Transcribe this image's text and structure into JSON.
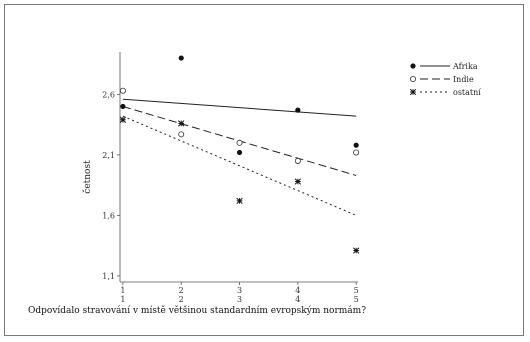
{
  "chart_data": {
    "type": "scatter",
    "title": "",
    "xlabel": "Odpovídalo stravování v místě většinou standardním evropským normám?",
    "ylabel": "četnost",
    "x": [
      1,
      2,
      3,
      4,
      5
    ],
    "x_tick_labels": [
      "1\n1",
      "2\n2",
      "3\n3",
      "4\n4",
      "5\n5"
    ],
    "y_ticks": [
      1.1,
      1.6,
      2.1,
      2.6
    ],
    "y_tick_labels": [
      "1,1",
      "1,6",
      "2,1",
      "2,6"
    ],
    "xlim": [
      0.95,
      5.1
    ],
    "ylim": [
      1.05,
      2.95
    ],
    "grid": false,
    "legend_position": "top-right",
    "series": [
      {
        "name": "Afrika",
        "marker": "filled-circle",
        "line_style": "solid",
        "points": [
          [
            1,
            2.5
          ],
          [
            2,
            2.9
          ],
          [
            3,
            2.12
          ],
          [
            4,
            2.47
          ],
          [
            5,
            2.18
          ]
        ],
        "fit": [
          [
            1,
            2.56
          ],
          [
            5,
            2.42
          ]
        ]
      },
      {
        "name": "Indie",
        "marker": "open-circle",
        "line_style": "dashed",
        "points": [
          [
            1,
            2.63
          ],
          [
            2,
            2.27
          ],
          [
            3,
            2.2
          ],
          [
            4,
            2.05
          ],
          [
            5,
            2.12
          ]
        ],
        "fit": [
          [
            1,
            2.5
          ],
          [
            5,
            1.93
          ]
        ]
      },
      {
        "name": "ostatní",
        "marker": "asterisk",
        "line_style": "dotted",
        "points": [
          [
            1,
            2.39
          ],
          [
            2,
            2.36
          ],
          [
            3,
            1.72
          ],
          [
            4,
            1.88
          ],
          [
            5,
            1.31
          ]
        ],
        "fit": [
          [
            1,
            2.42
          ],
          [
            5,
            1.6
          ]
        ]
      }
    ]
  }
}
